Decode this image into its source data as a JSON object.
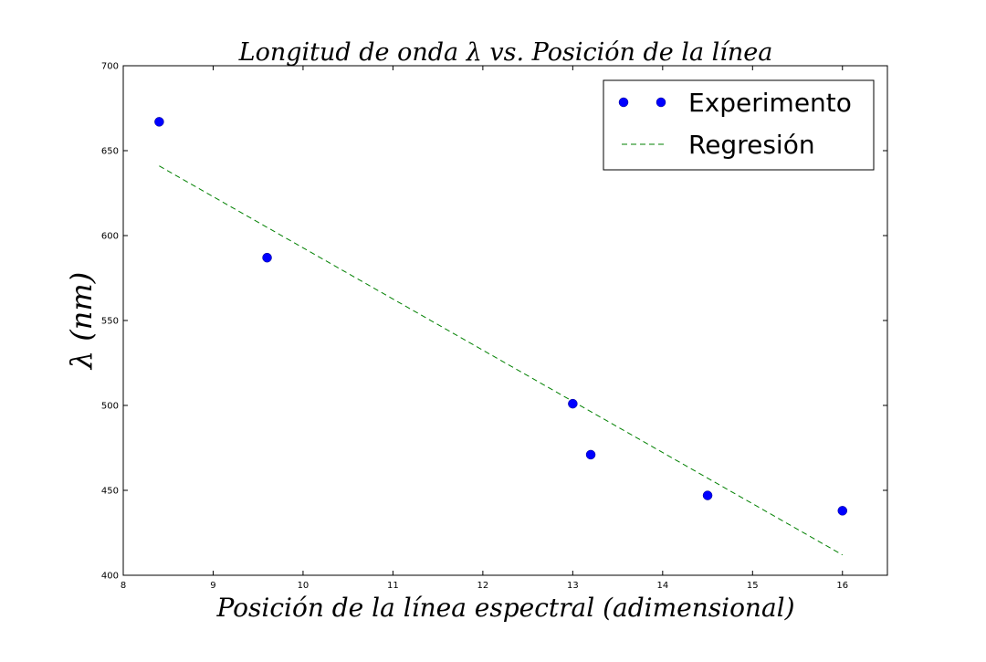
{
  "chart_data": {
    "type": "scatter",
    "title": "Longitud de onda λ vs. Posición de la línea",
    "xlabel": "Posición de la línea espectral (adimensional)",
    "ylabel": "λ (nm)",
    "xlim": [
      8,
      16.5
    ],
    "ylim": [
      400,
      700
    ],
    "x_ticks": [
      8,
      9,
      10,
      11,
      12,
      13,
      14,
      15,
      16
    ],
    "y_ticks": [
      400,
      450,
      500,
      550,
      600,
      650,
      700
    ],
    "grid": false,
    "legend_position": "top-right",
    "series": [
      {
        "name": "Experimento",
        "kind": "scatter",
        "color": "#0000ff",
        "x": [
          8.4,
          9.6,
          13.0,
          13.2,
          14.5,
          16.0
        ],
        "y": [
          667,
          587,
          501,
          471,
          447,
          438
        ]
      },
      {
        "name": "Regresión",
        "kind": "line",
        "style": "dashed",
        "color": "#008000",
        "x": [
          8.4,
          16.0
        ],
        "y": [
          641,
          412
        ]
      }
    ]
  }
}
